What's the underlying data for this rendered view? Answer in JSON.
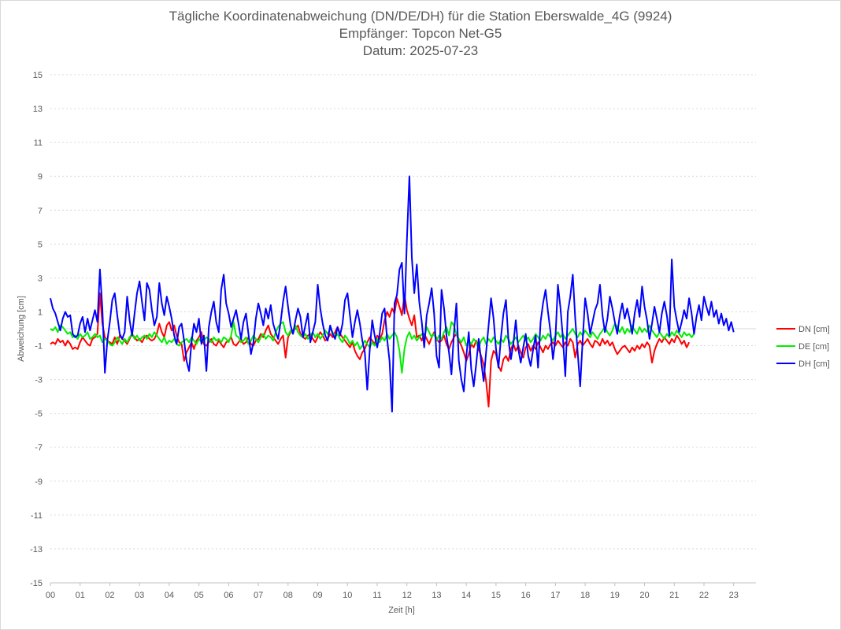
{
  "chart_data": {
    "type": "line",
    "title": [
      "Tägliche Koordinatenabweichung (DN/DE/DH) für die Station Eberswalde_4G (9924)",
      "Empfänger: Topcon Net-G5",
      "Datum: 2025-07-23"
    ],
    "xlabel": "Zeit [h]",
    "ylabel": "Abweichung [cm]",
    "xlim": [
      0,
      23.75
    ],
    "ylim": [
      -15,
      15
    ],
    "x_ticks": [
      "00",
      "01",
      "02",
      "03",
      "04",
      "05",
      "06",
      "07",
      "08",
      "09",
      "10",
      "11",
      "12",
      "13",
      "14",
      "15",
      "16",
      "17",
      "18",
      "19",
      "20",
      "21",
      "22",
      "23"
    ],
    "y_ticks": [
      15,
      13,
      11,
      9,
      7,
      5,
      3,
      1,
      -1,
      -3,
      -5,
      -7,
      -9,
      -11,
      -13,
      -15
    ],
    "grid": "horizontal-dotted",
    "legend_position": "right",
    "sampling_minutes": 5,
    "series": [
      {
        "name": "DN [cm]",
        "color": "#ff0000",
        "values": [
          -0.9,
          -0.8,
          -0.9,
          -0.6,
          -0.8,
          -0.7,
          -1.0,
          -0.7,
          -0.9,
          -1.2,
          -1.1,
          -1.2,
          -0.8,
          -0.5,
          -0.7,
          -0.9,
          -1.0,
          -0.6,
          -0.5,
          -0.3,
          2.1,
          0.3,
          -0.5,
          -0.7,
          -0.8,
          -0.9,
          -0.5,
          -0.9,
          -0.4,
          -0.6,
          -0.7,
          -0.9,
          -0.6,
          -0.3,
          -0.5,
          -0.7,
          -0.6,
          -0.8,
          -0.5,
          -0.4,
          -0.6,
          -0.7,
          -0.6,
          -0.3,
          0.3,
          -0.2,
          -0.5,
          0.2,
          0.4,
          -0.1,
          0.2,
          -0.4,
          -0.8,
          -0.9,
          -1.9,
          -1.4,
          -1.1,
          -0.8,
          -1.2,
          -0.7,
          -0.5,
          -0.2,
          -0.9,
          -1.0,
          -0.8,
          -0.6,
          -0.9,
          -1.0,
          -0.7,
          -0.9,
          -1.1,
          -0.8,
          -0.7,
          -0.5,
          -0.9,
          -1.0,
          -0.8,
          -0.6,
          -0.9,
          -0.8,
          -0.5,
          -0.9,
          -1.0,
          -0.7,
          -0.6,
          -0.3,
          -0.5,
          -0.1,
          0.2,
          -0.3,
          -0.5,
          -0.7,
          -0.9,
          -0.6,
          -0.4,
          -1.7,
          -0.5,
          -0.2,
          -0.1,
          0.0,
          0.2,
          -0.3,
          -0.5,
          -0.6,
          -0.4,
          -0.3,
          -0.6,
          -0.8,
          -0.5,
          -0.2,
          -0.4,
          -0.7,
          -0.6,
          -0.3,
          -0.5,
          -0.2,
          0.1,
          -0.3,
          -0.5,
          -0.7,
          -0.9,
          -1.1,
          -0.8,
          -1.3,
          -1.6,
          -1.8,
          -1.4,
          -1.2,
          -0.8,
          -0.5,
          -0.7,
          -0.9,
          -0.4,
          -0.6,
          -0.3,
          0.5,
          1.0,
          0.7,
          1.2,
          0.9,
          1.8,
          1.3,
          0.8,
          2.0,
          1.1,
          0.6,
          0.2,
          0.8,
          -0.5,
          -0.4,
          -0.7,
          -0.3,
          -0.6,
          -0.9,
          -0.5,
          -0.2,
          -0.6,
          -0.8,
          -0.7,
          -0.4,
          -0.9,
          -1.2,
          -0.8,
          -0.5,
          -0.3,
          -0.7,
          -1.0,
          -1.4,
          -1.9,
          -1.5,
          -0.9,
          -1.1,
          -0.7,
          -1.2,
          -1.6,
          -2.1,
          -3.1,
          -4.6,
          -1.9,
          -1.3,
          -1.5,
          -2.2,
          -2.5,
          -1.8,
          -1.6,
          -1.9,
          -1.2,
          -0.9,
          -1.3,
          -1.0,
          -1.4,
          -1.7,
          -1.1,
          -0.9,
          -1.3,
          -1.0,
          -1.2,
          -0.8,
          -1.1,
          -1.4,
          -1.0,
          -1.2,
          -0.9,
          -0.8,
          -1.0,
          -0.7,
          -0.9,
          -1.1,
          -0.8,
          -1.0,
          -0.6,
          -0.8,
          -1.7,
          -0.9,
          -0.7,
          -1.0,
          -0.8,
          -0.6,
          -0.9,
          -1.1,
          -0.7,
          -0.8,
          -1.0,
          -0.6,
          -0.9,
          -0.7,
          -1.0,
          -0.8,
          -1.2,
          -1.5,
          -1.3,
          -1.1,
          -1.0,
          -1.2,
          -1.4,
          -1.1,
          -1.3,
          -1.0,
          -1.2,
          -0.9,
          -1.1,
          -0.8,
          -1.0,
          -2.0,
          -1.3,
          -0.9,
          -0.6,
          -0.8,
          -0.5,
          -0.7,
          -0.9,
          -0.6,
          -0.8,
          -0.4,
          -0.6,
          -0.9,
          -0.7,
          -1.1,
          -0.8
        ]
      },
      {
        "name": "DE [cm]",
        "color": "#00ee00",
        "values": [
          0.0,
          -0.1,
          0.1,
          -0.2,
          0.2,
          0.1,
          -0.1,
          -0.3,
          -0.2,
          -0.5,
          -0.4,
          -0.6,
          -0.3,
          -0.5,
          -0.4,
          -0.2,
          -0.6,
          -0.5,
          -0.3,
          -0.5,
          -0.4,
          -0.8,
          -0.6,
          -0.7,
          -0.9,
          -1.0,
          -0.8,
          -0.5,
          -0.7,
          -0.9,
          -0.6,
          -0.8,
          -0.5,
          -0.3,
          -0.6,
          -0.4,
          -0.7,
          -0.5,
          -0.4,
          -0.6,
          -0.3,
          -0.5,
          -0.2,
          -0.4,
          -0.6,
          -0.8,
          -0.5,
          -0.9,
          -0.7,
          -0.8,
          -0.6,
          -0.9,
          -1.0,
          -0.8,
          -0.7,
          -0.6,
          -0.8,
          -0.5,
          -0.7,
          -0.9,
          -0.6,
          -0.8,
          -0.7,
          -0.5,
          -0.6,
          -0.8,
          -0.5,
          -0.7,
          -0.6,
          -0.8,
          -0.5,
          -0.6,
          -0.8,
          -0.4,
          0.4,
          -0.4,
          -0.5,
          -0.8,
          -0.7,
          -0.5,
          -0.9,
          -0.7,
          -0.4,
          -0.6,
          -0.8,
          -0.5,
          -0.3,
          -0.6,
          -0.4,
          -0.5,
          -0.7,
          -0.2,
          0.1,
          0.3,
          0.4,
          -0.2,
          -0.4,
          -0.1,
          -0.3,
          0.2,
          -0.2,
          -0.4,
          -0.5,
          -0.3,
          -0.6,
          -0.4,
          -0.2,
          -0.5,
          -0.3,
          -0.6,
          -0.4,
          -0.1,
          -0.3,
          0.0,
          -0.2,
          -0.5,
          -0.3,
          -0.6,
          -0.8,
          -0.4,
          -0.6,
          -0.9,
          -0.7,
          -1.0,
          -0.8,
          -1.2,
          -1.0,
          -0.7,
          -0.9,
          -1.1,
          -0.8,
          -1.0,
          -0.6,
          -0.8,
          -0.5,
          -0.7,
          -0.3,
          -0.6,
          -0.4,
          -0.2,
          -0.5,
          -1.3,
          -2.6,
          -1.2,
          -0.5,
          -0.2,
          -0.6,
          -0.4,
          -0.7,
          -0.5,
          -0.3,
          -0.6,
          0.1,
          -0.2,
          -0.5,
          -0.3,
          -0.7,
          -0.4,
          -0.6,
          -0.2,
          0.1,
          -0.4,
          0.4,
          0.2,
          -0.3,
          -0.6,
          -0.8,
          -0.5,
          -1.0,
          -0.7,
          -0.9,
          -0.6,
          -0.8,
          -1.1,
          -0.7,
          -0.5,
          -0.9,
          -0.6,
          -0.8,
          -0.5,
          -0.7,
          -0.9,
          -0.6,
          -0.8,
          -0.4,
          -0.6,
          -0.9,
          -0.7,
          -0.5,
          -0.8,
          -0.6,
          -0.4,
          -0.7,
          -0.5,
          -0.8,
          -0.6,
          -0.3,
          -0.5,
          -0.7,
          -0.4,
          -0.6,
          -0.3,
          -0.5,
          -0.7,
          -0.4,
          -0.2,
          -0.5,
          -0.3,
          -0.6,
          -0.4,
          -0.2,
          0.0,
          -0.3,
          -0.5,
          -0.2,
          -0.4,
          -0.1,
          -0.3,
          -0.5,
          -0.2,
          -0.4,
          -0.6,
          -0.3,
          -0.1,
          0.1,
          -0.2,
          -0.4,
          -0.1,
          0.3,
          0.1,
          -0.2,
          0.1,
          -0.3,
          0.0,
          -0.2,
          0.2,
          -0.1,
          -0.3,
          0.1,
          -0.2,
          0.0,
          -0.2,
          0.2,
          -0.1,
          -0.3,
          -0.5,
          -0.2,
          -0.4,
          -0.6,
          -0.3,
          -0.5,
          -0.2,
          -0.4,
          -0.1,
          -0.3,
          -0.5,
          -0.2,
          -0.4,
          -0.3,
          -0.5,
          -0.3
        ]
      },
      {
        "name": "DH [cm]",
        "color": "#0000ff",
        "values": [
          1.8,
          1.2,
          0.9,
          0.4,
          -0.1,
          0.6,
          1.0,
          0.7,
          0.8,
          -0.3,
          -0.5,
          -0.4,
          0.3,
          0.7,
          -0.2,
          0.6,
          -0.1,
          0.5,
          1.1,
          0.4,
          3.5,
          1.2,
          -2.6,
          -0.7,
          0.4,
          1.7,
          2.1,
          0.8,
          -0.3,
          -0.6,
          -0.2,
          1.9,
          0.5,
          -0.4,
          0.9,
          2.1,
          2.8,
          1.6,
          0.5,
          2.7,
          2.3,
          1.1,
          0.2,
          0.7,
          2.7,
          1.5,
          0.8,
          1.9,
          1.3,
          0.6,
          -0.4,
          -0.9,
          0.1,
          0.3,
          -0.7,
          -1.9,
          -2.5,
          -0.8,
          0.3,
          -0.2,
          0.6,
          -0.9,
          -0.4,
          -2.5,
          0.1,
          1.0,
          1.6,
          0.4,
          -0.2,
          2.3,
          3.2,
          1.5,
          0.9,
          0.1,
          0.6,
          1.1,
          0.3,
          -0.6,
          0.4,
          0.9,
          -0.3,
          -1.5,
          -0.8,
          0.6,
          1.5,
          0.9,
          0.2,
          1.2,
          0.6,
          1.4,
          0.3,
          -0.2,
          -0.6,
          0.4,
          1.6,
          2.5,
          1.3,
          0.2,
          -0.3,
          0.5,
          1.2,
          0.7,
          -0.5,
          0.2,
          0.9,
          -0.8,
          -0.2,
          0.4,
          2.6,
          1.2,
          0.3,
          -0.4,
          -0.7,
          0.2,
          -0.3,
          -0.6,
          0.1,
          -0.4,
          0.3,
          1.7,
          2.1,
          0.8,
          -0.5,
          0.4,
          1.1,
          0.3,
          -0.7,
          -1.4,
          -3.6,
          -1.2,
          0.5,
          -0.4,
          -1.1,
          -0.3,
          0.9,
          1.2,
          -0.6,
          -1.9,
          -4.9,
          1.5,
          2.0,
          3.5,
          3.9,
          0.9,
          5.2,
          9.0,
          4.2,
          2.1,
          3.8,
          1.6,
          0.4,
          -1.1,
          0.8,
          1.5,
          2.4,
          0.9,
          -1.6,
          -2.3,
          2.3,
          1.2,
          -0.4,
          -1.4,
          -2.7,
          -0.3,
          1.5,
          -1.9,
          -3.0,
          -3.7,
          -1.6,
          -0.2,
          -2.4,
          -3.4,
          -2.1,
          -0.6,
          -1.9,
          -3.1,
          -1.4,
          0.2,
          1.8,
          0.6,
          -1.2,
          -2.3,
          -0.5,
          0.9,
          1.7,
          -0.6,
          -1.8,
          -0.9,
          0.5,
          -1.2,
          -2.0,
          -1.1,
          -0.3,
          -1.6,
          -2.2,
          -1.2,
          -0.4,
          -2.3,
          0.4,
          1.5,
          2.3,
          1.0,
          -0.2,
          -1.8,
          -0.6,
          2.6,
          1.3,
          -0.5,
          -2.8,
          1.0,
          1.9,
          3.2,
          0.6,
          -1.4,
          -3.4,
          -0.7,
          1.8,
          0.9,
          -0.3,
          0.4,
          1.1,
          1.5,
          2.6,
          0.8,
          -0.2,
          0.6,
          1.9,
          1.2,
          0.4,
          -0.3,
          0.8,
          1.5,
          0.6,
          1.2,
          0.5,
          -0.3,
          0.9,
          1.7,
          0.7,
          2.5,
          1.3,
          0.5,
          -0.6,
          0.3,
          1.3,
          0.6,
          -0.2,
          0.9,
          1.6,
          0.8,
          -0.4,
          4.1,
          1.3,
          0.5,
          -0.2,
          0.4,
          1.1,
          0.6,
          1.8,
          0.9,
          -0.3,
          0.7,
          1.4,
          0.5,
          1.9,
          1.3,
          0.8,
          1.6,
          0.7,
          1.1,
          0.3,
          0.9,
          0.2,
          0.6,
          -0.1,
          0.4,
          -0.2
        ]
      }
    ]
  }
}
